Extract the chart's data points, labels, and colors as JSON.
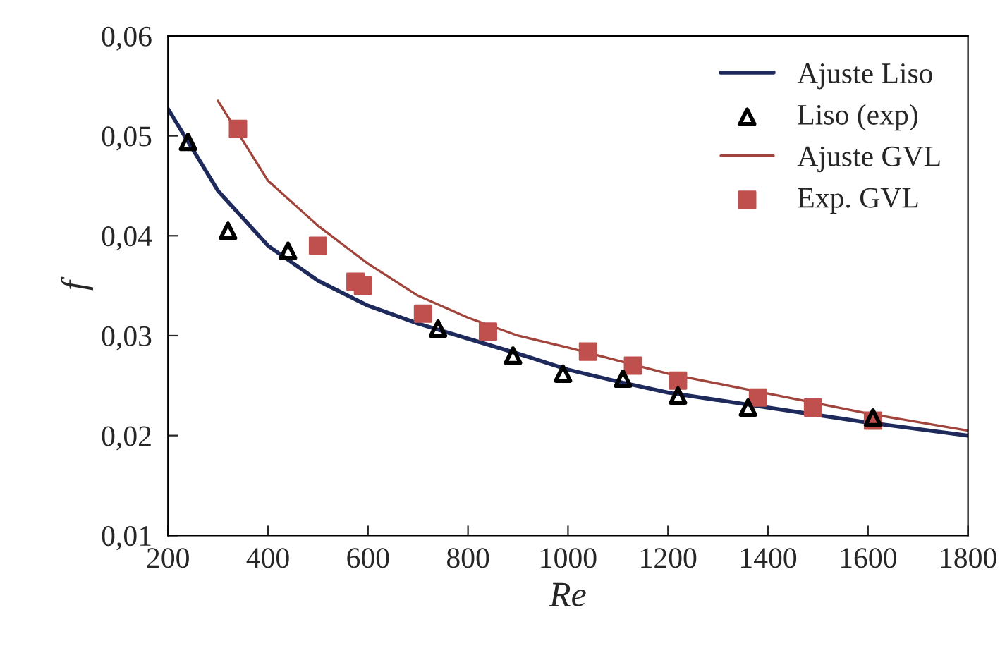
{
  "chart_data": {
    "type": "line",
    "xlabel": "Re",
    "ylabel": "f",
    "xlim": [
      200,
      1800
    ],
    "xticks": [
      200,
      400,
      600,
      800,
      1000,
      1200,
      1400,
      1600,
      1800
    ],
    "ylim": [
      0.01,
      0.06
    ],
    "yticks": [
      {
        "value": 0.01,
        "label": "0,01"
      },
      {
        "value": 0.02,
        "label": "0,02"
      },
      {
        "value": 0.03,
        "label": "0,03"
      },
      {
        "value": 0.04,
        "label": "0,04"
      },
      {
        "value": 0.05,
        "label": "0,05"
      },
      {
        "value": 0.06,
        "label": "0,06"
      }
    ],
    "grid": false,
    "legend": "top right",
    "series": [
      {
        "name": "Ajuste Liso",
        "color": "#1f2a5c",
        "marker": "none",
        "x": [
          200,
          300,
          400,
          500,
          600,
          700,
          800,
          900,
          1000,
          1100,
          1200,
          1400,
          1600,
          1800
        ],
        "values": [
          0.0527,
          0.0445,
          0.039,
          0.0355,
          0.033,
          0.0312,
          0.0297,
          0.0282,
          0.0266,
          0.0254,
          0.0243,
          0.0228,
          0.0213,
          0.02
        ]
      },
      {
        "name": "Liso (exp)",
        "type": "scatter",
        "color": "#000000",
        "marker": "triangle",
        "x": [
          240,
          320,
          440,
          740,
          890,
          990,
          1110,
          1220,
          1360,
          1610
        ],
        "values": [
          0.0494,
          0.0405,
          0.0385,
          0.0307,
          0.028,
          0.0262,
          0.0257,
          0.024,
          0.0228,
          0.0218
        ]
      },
      {
        "name": "Ajuste GVL",
        "color": "#a0443c",
        "marker": "none",
        "x": [
          300,
          400,
          500,
          600,
          700,
          800,
          900,
          1000,
          1100,
          1200,
          1400,
          1600,
          1800
        ],
        "values": [
          0.0535,
          0.0455,
          0.041,
          0.0372,
          0.034,
          0.0318,
          0.03,
          0.0288,
          0.0275,
          0.0262,
          0.0242,
          0.0222,
          0.0205
        ]
      },
      {
        "name": "Exp. GVL",
        "type": "scatter",
        "color": "#c0504d",
        "marker": "square",
        "x": [
          340,
          500,
          575,
          590,
          710,
          840,
          1040,
          1130,
          1220,
          1380,
          1490,
          1610
        ],
        "values": [
          0.0507,
          0.039,
          0.0354,
          0.035,
          0.0322,
          0.0304,
          0.0284,
          0.027,
          0.0255,
          0.0238,
          0.0228,
          0.0215
        ]
      }
    ]
  }
}
